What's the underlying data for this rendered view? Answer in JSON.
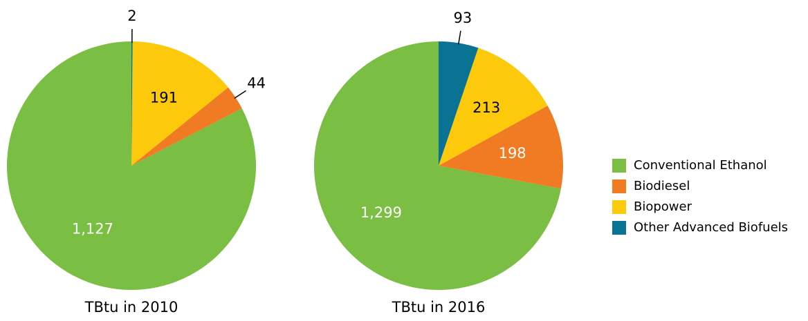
{
  "chart_data": [
    {
      "type": "pie",
      "title": "TBtu in 2010",
      "categories": [
        "Conventional Ethanol",
        "Biodiesel",
        "Biopower",
        "Other Advanced Biofuels"
      ],
      "values": [
        1127,
        44,
        191,
        2
      ],
      "value_labels": [
        "1,127",
        "44",
        "191",
        "2"
      ],
      "colors": [
        "#7abf43",
        "#f07b23",
        "#fcca0a",
        "#0a7394"
      ]
    },
    {
      "type": "pie",
      "title": "TBtu in 2016",
      "categories": [
        "Conventional Ethanol",
        "Biodiesel",
        "Biopower",
        "Other Advanced Biofuels"
      ],
      "values": [
        1299,
        198,
        213,
        93
      ],
      "value_labels": [
        "1,299",
        "198",
        "213",
        "93"
      ],
      "colors": [
        "#7abf43",
        "#f07b23",
        "#fcca0a",
        "#0a7394"
      ]
    }
  ]
}
